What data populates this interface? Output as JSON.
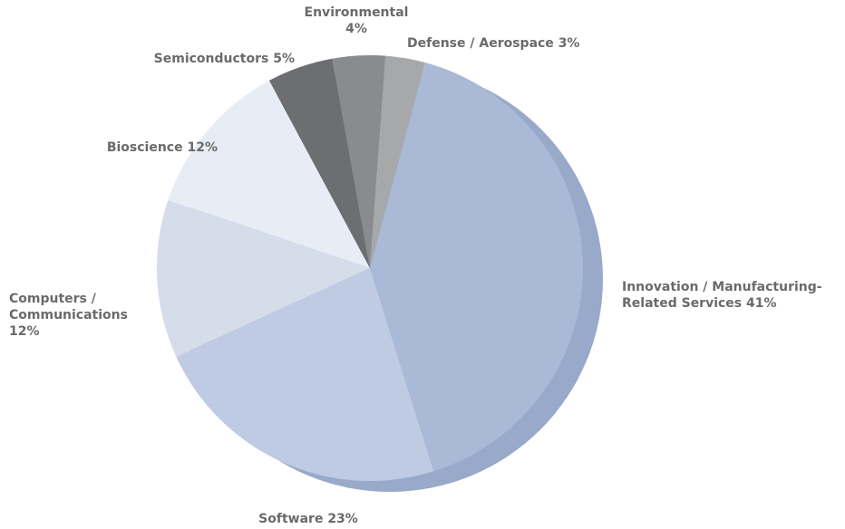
{
  "chart_data": {
    "type": "pie",
    "categories": [
      "Innovation / Manufacturing-Related Services",
      "Software",
      "Computers / Communications",
      "Bioscience",
      "Semiconductors",
      "Environmental",
      "Defense / Aerospace"
    ],
    "values": [
      41,
      23,
      12,
      12,
      5,
      4,
      3
    ],
    "value_labels": [
      "41%",
      "23%",
      "12%",
      "12%",
      "5%",
      "4%",
      "3%"
    ],
    "colors": [
      "#a9b9d6",
      "#bfcbe3",
      "#d5dcea",
      "#e8edf5",
      "#6d6e71",
      "#8a8b8e",
      "#a7a8aa"
    ]
  }
}
